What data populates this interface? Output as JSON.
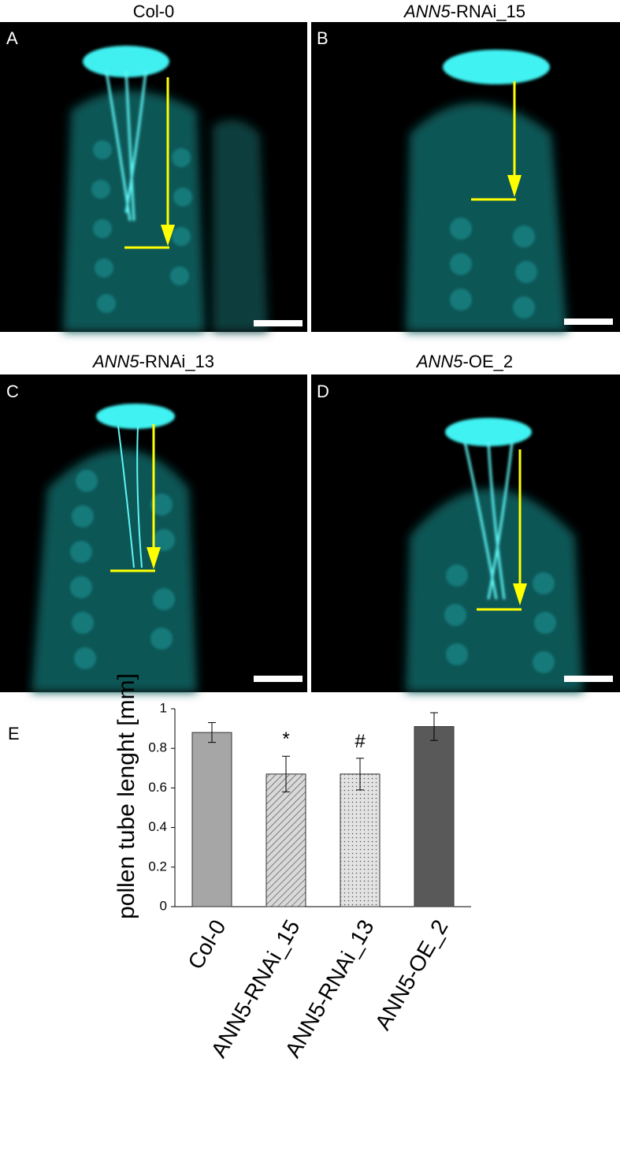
{
  "panels": [
    {
      "letter": "A",
      "title": "Col-0"
    },
    {
      "letter": "B",
      "title_italic": "ANN5",
      "title": "-RNAi_15"
    },
    {
      "letter": "C",
      "title_italic": "ANN5",
      "title": "-RNAi_13"
    },
    {
      "letter": "D",
      "title_italic": "ANN5",
      "title": "-OE_2"
    }
  ],
  "chart_data": {
    "type": "bar",
    "letter": "E",
    "y_label": "pollen tube lenght [mm]",
    "categories": [
      "Col-0",
      "ANN5-RNAi_15",
      "ANN5-RNAi_13",
      "ANN5-OE_2"
    ],
    "values": [
      0.88,
      0.67,
      0.67,
      0.91
    ],
    "errors": [
      0.05,
      0.09,
      0.08,
      0.07
    ],
    "annotations": [
      null,
      "*",
      "#",
      null
    ],
    "fills": [
      "solid",
      "hatch",
      "dots",
      "solid"
    ],
    "colors": [
      "#a6a6a6",
      "#d9d9d9",
      "#e3e3e3",
      "#595959"
    ],
    "ylim": [
      0,
      1
    ],
    "yticks": [
      0,
      0.2,
      0.4,
      0.6,
      0.8,
      1
    ]
  }
}
